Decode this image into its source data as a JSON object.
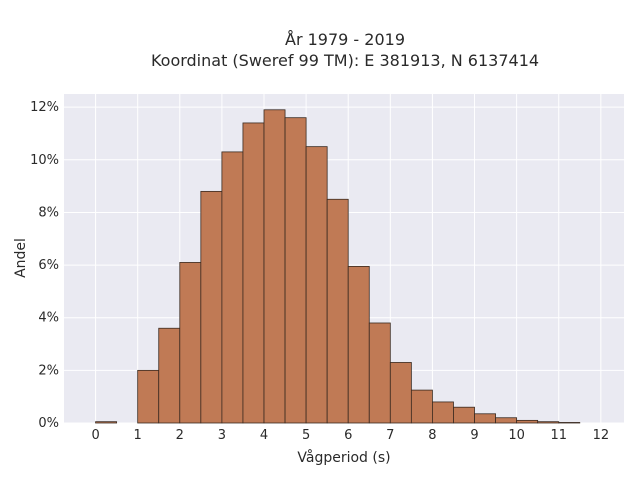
{
  "chart_data": {
    "type": "bar",
    "title_line1": "År 1979 - 2019",
    "title_line2": "Koordinat (Sweref 99 TM): E 381913, N 6137414",
    "xlabel": "Vågperiod (s)",
    "ylabel": "Andel",
    "xlim": [
      -0.75,
      12.55
    ],
    "ylim": [
      0,
      12.5
    ],
    "x_ticks": [
      0,
      1,
      2,
      3,
      4,
      5,
      6,
      7,
      8,
      9,
      10,
      11,
      12
    ],
    "y_ticks": [
      {
        "value": 0,
        "label": "0%"
      },
      {
        "value": 2,
        "label": "2%"
      },
      {
        "value": 4,
        "label": "4%"
      },
      {
        "value": 6,
        "label": "6%"
      },
      {
        "value": 8,
        "label": "8%"
      },
      {
        "value": 10,
        "label": "10%"
      },
      {
        "value": 12,
        "label": "12%"
      }
    ],
    "bin_width": 0.5,
    "bin_starts": [
      0,
      1,
      1.5,
      2,
      2.5,
      3,
      3.5,
      4,
      4.5,
      5,
      5.5,
      6,
      6.5,
      7,
      7.5,
      8,
      8.5,
      9,
      9.5,
      10,
      10.5,
      11
    ],
    "values": [
      0.05,
      2.0,
      3.6,
      6.1,
      8.8,
      10.3,
      11.4,
      11.9,
      11.6,
      10.5,
      8.5,
      5.95,
      3.8,
      2.3,
      1.25,
      0.8,
      0.6,
      0.35,
      0.2,
      0.1,
      0.05,
      0.02
    ],
    "grid": true,
    "colors": {
      "bar_fill": "#c07a55",
      "bar_edge": "#3a2a20",
      "plot_bg": "#eaeaf2",
      "grid": "#ffffff"
    }
  }
}
